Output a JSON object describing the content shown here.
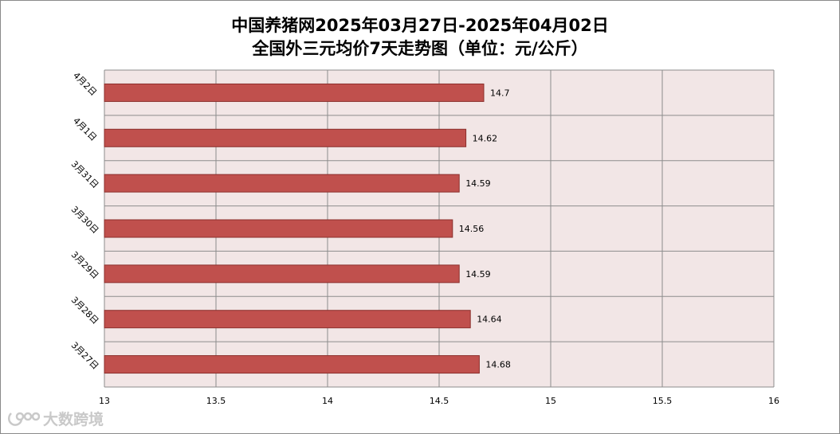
{
  "chart_data": {
    "type": "bar",
    "orientation": "horizontal",
    "title_line1": "中国养猪网2025年03月27日-2025年04月02日",
    "title_line2": "全国外三元均价7天走势图（单位：元/公斤）",
    "categories": [
      "4月2日",
      "4月1日",
      "3月31日",
      "3月30日",
      "3月29日",
      "3月28日",
      "3月27日"
    ],
    "values": [
      14.7,
      14.62,
      14.59,
      14.56,
      14.59,
      14.64,
      14.68
    ],
    "data_labels": [
      "14.7",
      "14.62",
      "14.59",
      "14.56",
      "14.59",
      "14.64",
      "14.68"
    ],
    "xlim": [
      13,
      16
    ],
    "x_ticks": [
      "13",
      "13.5",
      "14",
      "14.5",
      "15",
      "15.5",
      "16"
    ],
    "grid": true,
    "bar_color": "#c0504d",
    "plot_background": "#f2e6e6"
  },
  "watermark": {
    "text": "大数跨境"
  }
}
